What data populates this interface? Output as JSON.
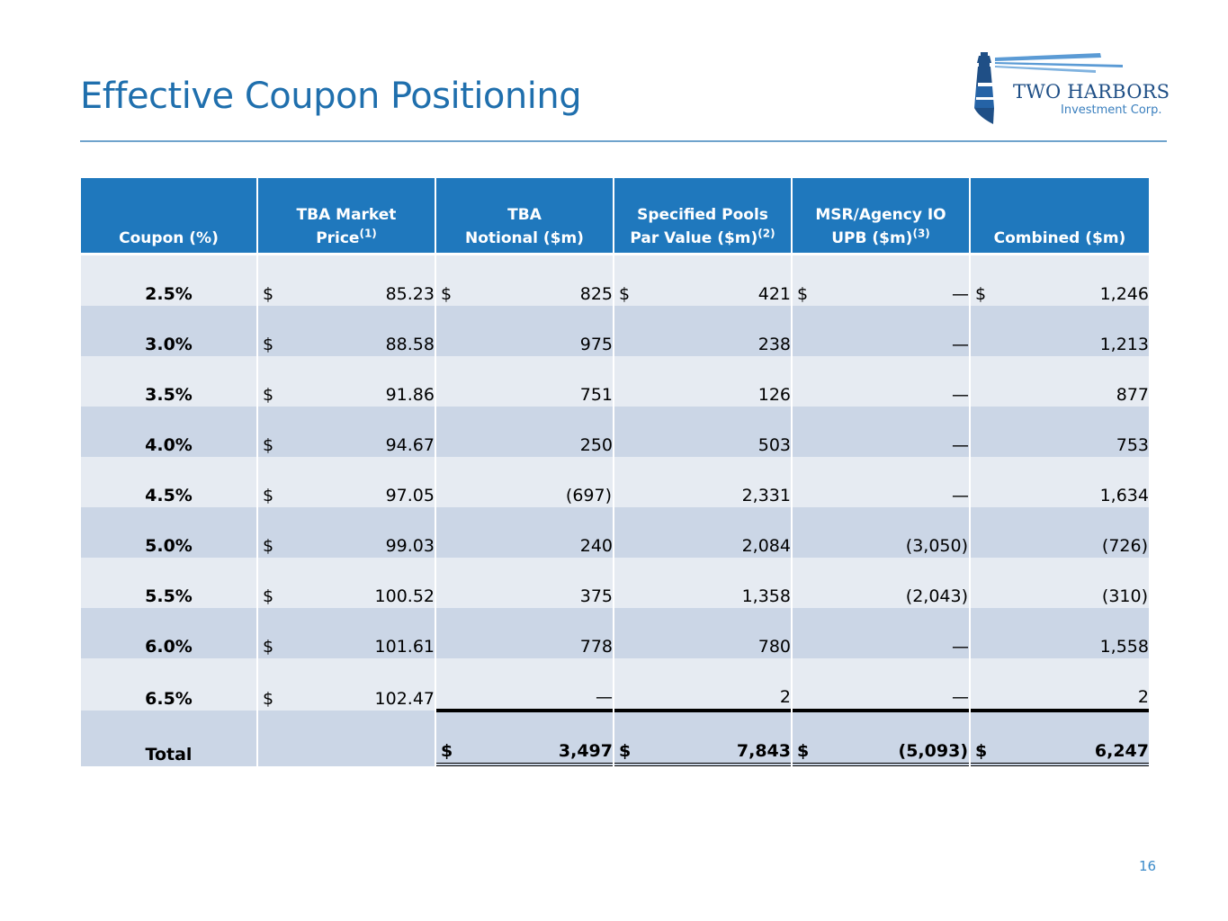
{
  "title": "Effective Coupon Positioning",
  "logo": {
    "name": "TWO HARBORS",
    "subtitle": "Investment Corp."
  },
  "colors": {
    "title": "#1f6fad",
    "header_bg": "#1f78bd",
    "row_light": "#e6ebf2",
    "row_dark": "#cbd6e6"
  },
  "table": {
    "headers": {
      "coupon": "Coupon (%)",
      "tba_price": "TBA Market Price",
      "tba_price_note": "(1)",
      "tba_notional_line1": "TBA",
      "tba_notional_line2": "Notional ($m)",
      "spec_pools_line1": "Specified Pools",
      "spec_pools_line2": "Par Value ($m)",
      "spec_pools_note": "(2)",
      "msr_line1": "MSR/Agency IO",
      "msr_line2": "UPB ($m)",
      "msr_note": "(3)",
      "combined": "Combined ($m)"
    },
    "currency": "$",
    "rows": [
      {
        "coupon": "2.5%",
        "price": "85.23",
        "notional": "825",
        "pools": "421",
        "msr": "—",
        "combined": "1,246"
      },
      {
        "coupon": "3.0%",
        "price": "88.58",
        "notional": "975",
        "pools": "238",
        "msr": "—",
        "combined": "1,213"
      },
      {
        "coupon": "3.5%",
        "price": "91.86",
        "notional": "751",
        "pools": "126",
        "msr": "—",
        "combined": "877"
      },
      {
        "coupon": "4.0%",
        "price": "94.67",
        "notional": "250",
        "pools": "503",
        "msr": "—",
        "combined": "753"
      },
      {
        "coupon": "4.5%",
        "price": "97.05",
        "notional": "(697)",
        "pools": "2,331",
        "msr": "—",
        "combined": "1,634"
      },
      {
        "coupon": "5.0%",
        "price": "99.03",
        "notional": "240",
        "pools": "2,084",
        "msr": "(3,050)",
        "combined": "(726)"
      },
      {
        "coupon": "5.5%",
        "price": "100.52",
        "notional": "375",
        "pools": "1,358",
        "msr": "(2,043)",
        "combined": "(310)"
      },
      {
        "coupon": "6.0%",
        "price": "101.61",
        "notional": "778",
        "pools": "780",
        "msr": "—",
        "combined": "1,558"
      },
      {
        "coupon": "6.5%",
        "price": "102.47",
        "notional": "—",
        "pools": "2",
        "msr": "—",
        "combined": "2"
      }
    ],
    "total": {
      "label": "Total",
      "notional": "3,497",
      "pools": "7,843",
      "msr": "(5,093)",
      "combined": "6,247"
    }
  },
  "page_number": "16"
}
